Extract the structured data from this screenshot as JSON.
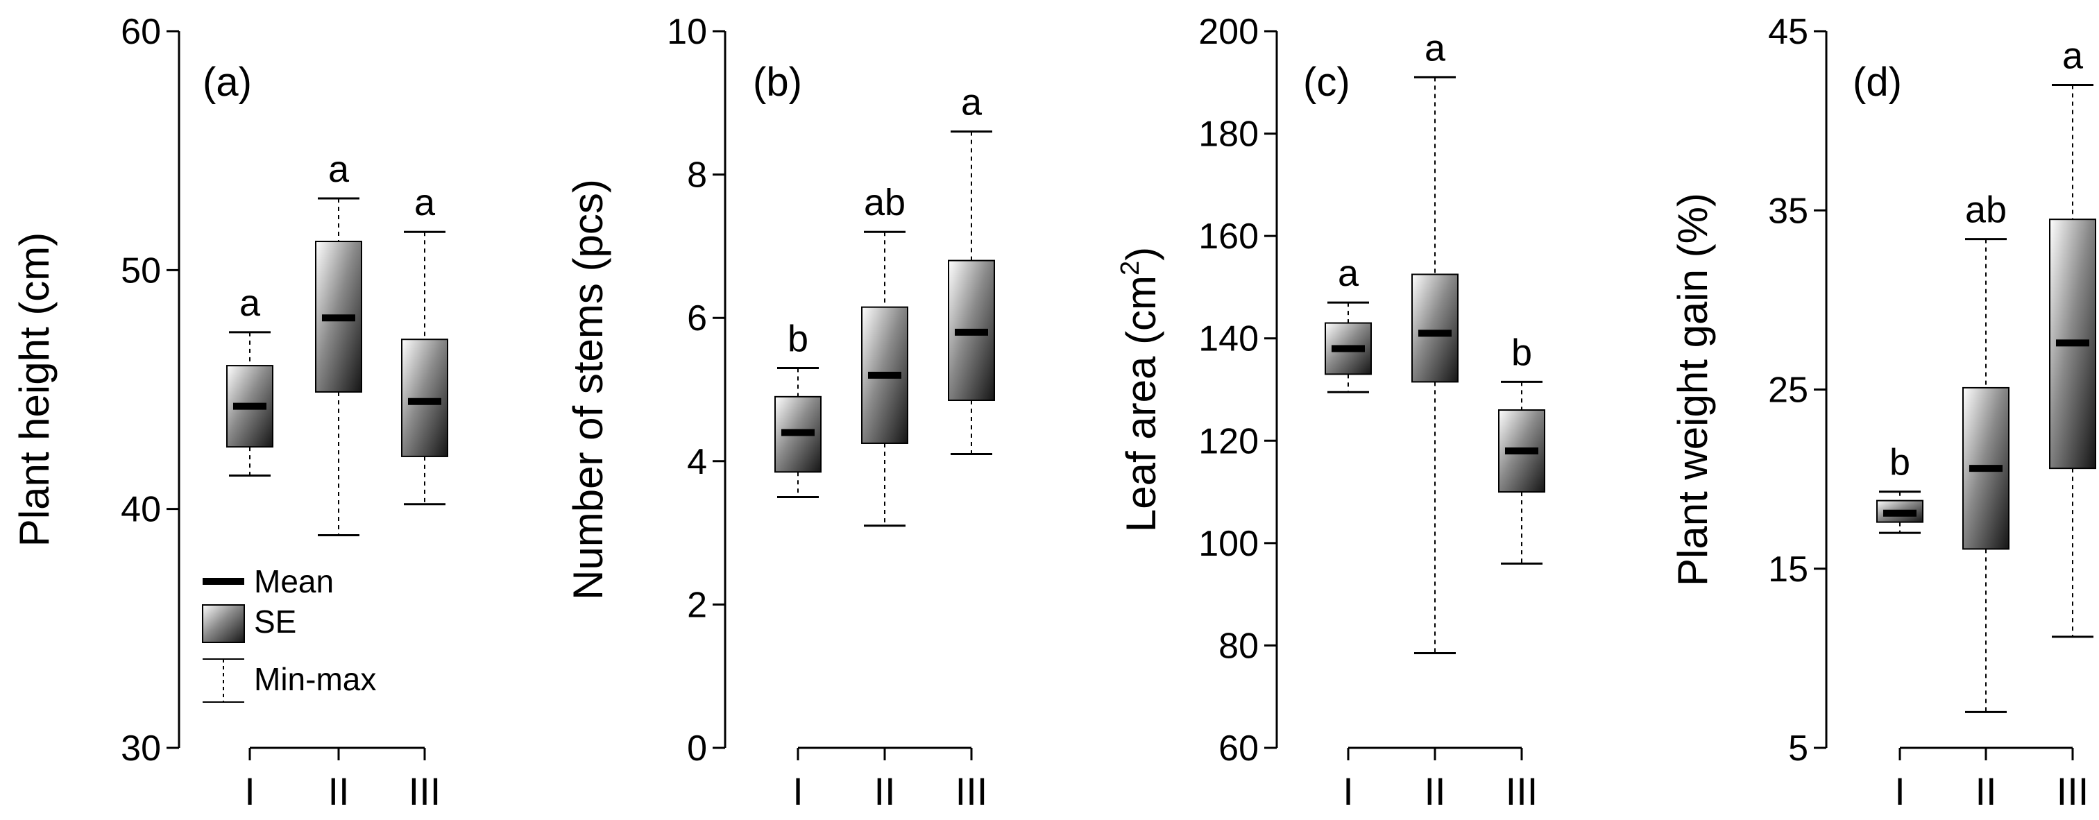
{
  "chart_data": [
    {
      "type": "box",
      "panel": "(a)",
      "ylabel": "Plant height  (cm)",
      "ylim": [
        30,
        60
      ],
      "yticks": [
        "30",
        "40",
        "50",
        "60"
      ],
      "categories": [
        "I",
        "II",
        "III"
      ],
      "boxes": [
        {
          "category": "I",
          "mean": 44.3,
          "se_low": 42.6,
          "se_high": 46.0,
          "min": 41.4,
          "max": 47.4,
          "sig": "a"
        },
        {
          "category": "II",
          "mean": 48.0,
          "se_low": 44.9,
          "se_high": 51.2,
          "min": 38.9,
          "max": 53.0,
          "sig": "a"
        },
        {
          "category": "III",
          "mean": 44.5,
          "se_low": 42.2,
          "se_high": 47.1,
          "min": 40.2,
          "max": 51.6,
          "sig": "a"
        }
      ]
    },
    {
      "type": "box",
      "panel": "(b)",
      "ylabel": "Number of stems  (pcs)",
      "ylim": [
        0,
        10
      ],
      "yticks": [
        "0",
        "2",
        "4",
        "6",
        "8",
        "10"
      ],
      "categories": [
        "I",
        "II",
        "III"
      ],
      "boxes": [
        {
          "category": "I",
          "mean": 4.4,
          "se_low": 3.85,
          "se_high": 4.9,
          "min": 3.5,
          "max": 5.3,
          "sig": "b"
        },
        {
          "category": "II",
          "mean": 5.2,
          "se_low": 4.25,
          "se_high": 6.15,
          "min": 3.1,
          "max": 7.2,
          "sig": "ab"
        },
        {
          "category": "III",
          "mean": 5.8,
          "se_low": 4.85,
          "se_high": 6.8,
          "min": 4.1,
          "max": 8.6,
          "sig": "a"
        }
      ]
    },
    {
      "type": "box",
      "panel": "(c)",
      "ylabel": "Leaf area (cm",
      "ylabel_sup": "2",
      "ylabel_end": ")",
      "ylim": [
        60,
        200
      ],
      "yticks": [
        "60",
        "80",
        "100",
        "120",
        "140",
        "160",
        "180",
        "200"
      ],
      "categories": [
        "I",
        "II",
        "III"
      ],
      "boxes": [
        {
          "category": "I",
          "mean": 138,
          "se_low": 133,
          "se_high": 143,
          "min": 129.5,
          "max": 147,
          "sig": "a"
        },
        {
          "category": "II",
          "mean": 141,
          "se_low": 131.5,
          "se_high": 152.5,
          "min": 78.5,
          "max": 191,
          "sig": "a"
        },
        {
          "category": "III",
          "mean": 118,
          "se_low": 110,
          "se_high": 126,
          "min": 96,
          "max": 131.5,
          "sig": "b"
        }
      ]
    },
    {
      "type": "box",
      "panel": "(d)",
      "ylabel": "Plant weight gain (%)",
      "ylim": [
        5,
        45
      ],
      "yticks": [
        "5",
        "15",
        "25",
        "35",
        "45"
      ],
      "categories": [
        "I",
        "II",
        "III"
      ],
      "boxes": [
        {
          "category": "I",
          "mean": 18.1,
          "se_low": 17.6,
          "se_high": 18.8,
          "min": 17.0,
          "max": 19.3,
          "sig": "b"
        },
        {
          "category": "II",
          "mean": 20.6,
          "se_low": 16.1,
          "se_high": 25.1,
          "min": 7.0,
          "max": 33.4,
          "sig": "ab"
        },
        {
          "category": "III",
          "mean": 27.6,
          "se_low": 20.6,
          "se_high": 34.5,
          "min": 11.2,
          "max": 42.0,
          "sig": "a"
        }
      ]
    }
  ],
  "legend": {
    "mean": "Mean",
    "se": "SE",
    "minmax": "Min-max"
  }
}
